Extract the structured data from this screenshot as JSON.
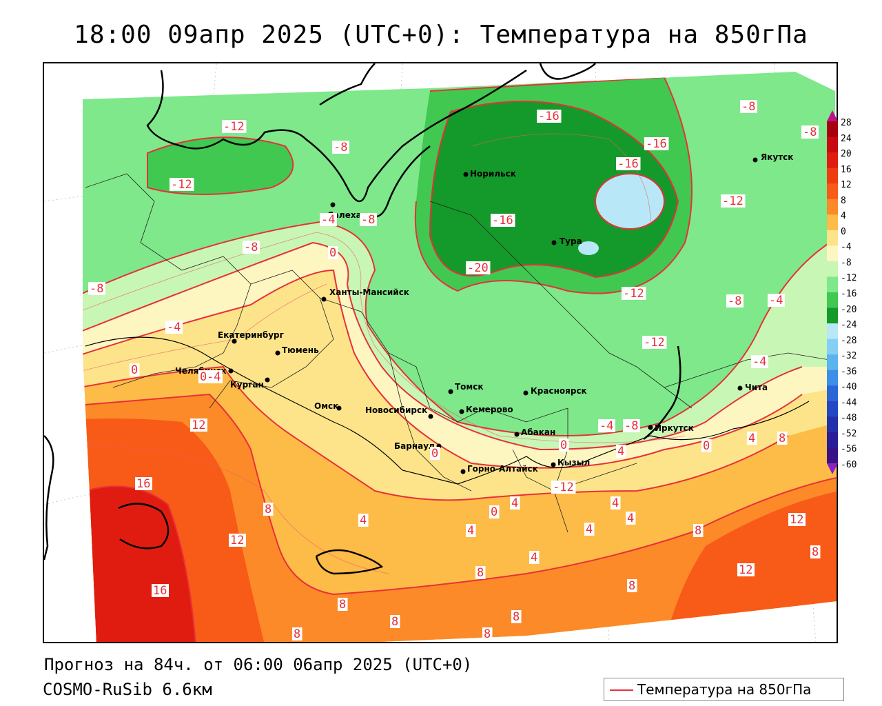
{
  "title": "18:00 09апр 2025 (UTC+0): Температура на 850гПа",
  "footer": {
    "forecast": "Прогноз на 84ч. от 06:00 06апр 2025 (UTC+0)",
    "model": "COSMO-RuSib 6.6км"
  },
  "legend": {
    "label": "Температура на 850гПа",
    "line_color": "#e8303a"
  },
  "colorbar": {
    "ticks": [
      "28",
      "24",
      "20",
      "16",
      "12",
      "8",
      "4",
      "0",
      "-4",
      "-8",
      "-12",
      "-16",
      "-20",
      "-24",
      "-28",
      "-32",
      "-36",
      "-40",
      "-44",
      "-48",
      "-52",
      "-56",
      "-60"
    ],
    "colors": [
      "#a80010",
      "#c80a10",
      "#e01c10",
      "#f03a10",
      "#f85a18",
      "#fc8a28",
      "#fdbb48",
      "#fde48a",
      "#fdf6c0",
      "#c8f6b4",
      "#7ee88a",
      "#40c850",
      "#149a2a",
      "#b8e8f8",
      "#84d0f4",
      "#5cb4ee",
      "#3c8ee6",
      "#2a66d8",
      "#2446c4",
      "#2230ac",
      "#281c98",
      "#3a1288"
    ]
  },
  "cities": [
    {
      "name": "Салехард"
    },
    {
      "name": "Норильск"
    },
    {
      "name": "Якутск"
    },
    {
      "name": "Тура"
    },
    {
      "name": "Ханты-Мансийск"
    },
    {
      "name": "Екатеринбург"
    },
    {
      "name": "Тюмень"
    },
    {
      "name": "Челябинск"
    },
    {
      "name": "Курган"
    },
    {
      "name": "Омск"
    },
    {
      "name": "Новосибирск"
    },
    {
      "name": "Томск"
    },
    {
      "name": "Кемерово"
    },
    {
      "name": "Красноярск"
    },
    {
      "name": "Абакан"
    },
    {
      "name": "Барнаул"
    },
    {
      "name": "Горно-Алтайск"
    },
    {
      "name": "Кызыл"
    },
    {
      "name": "Иркутск"
    },
    {
      "name": "Чита"
    }
  ],
  "isotherm_labels": [
    "-12",
    "-8",
    "-12",
    "-4",
    "-8",
    "-8",
    "-8",
    "-4",
    "0",
    "0",
    "-4",
    "0",
    "12",
    "16",
    "8",
    "12",
    "16",
    "8",
    "8",
    "8",
    "4",
    "0",
    "-12",
    "-16",
    "-16",
    "-20",
    "-16",
    "-16",
    "-12",
    "-12",
    "-12",
    "-8",
    "-4",
    "-8",
    "-8",
    "-4",
    "-8",
    "-4",
    "4",
    "8",
    "0",
    "0",
    "4",
    "4",
    "4",
    "4",
    "4",
    "4",
    "4",
    "8",
    "8",
    "12",
    "12",
    "8",
    "8",
    "8",
    "0",
    "8"
  ]
}
